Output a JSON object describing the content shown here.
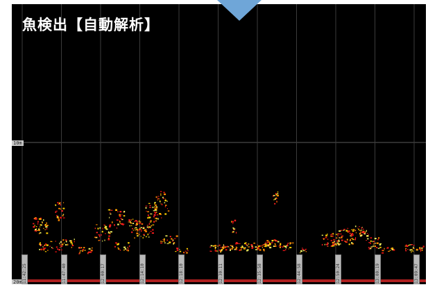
{
  "overlay": {
    "title": "魚検出【自動解析】",
    "arrow_color": "#6fa6d8"
  },
  "echogram": {
    "background": "#000000",
    "depth_labels": [
      "10m",
      "20m"
    ],
    "time_stamps": [
      "11:42:25",
      "11:47:40",
      "12:00:17",
      "12:14:10",
      "12:18:10",
      "12:30:11",
      "12:35:58",
      "12:44:58",
      "12:50:24",
      "13:00:19",
      "13:09:47"
    ],
    "echo_colors": [
      "#ff2020",
      "#e01010",
      "#ff8a00",
      "#ffd000",
      "#f0f060"
    ]
  }
}
